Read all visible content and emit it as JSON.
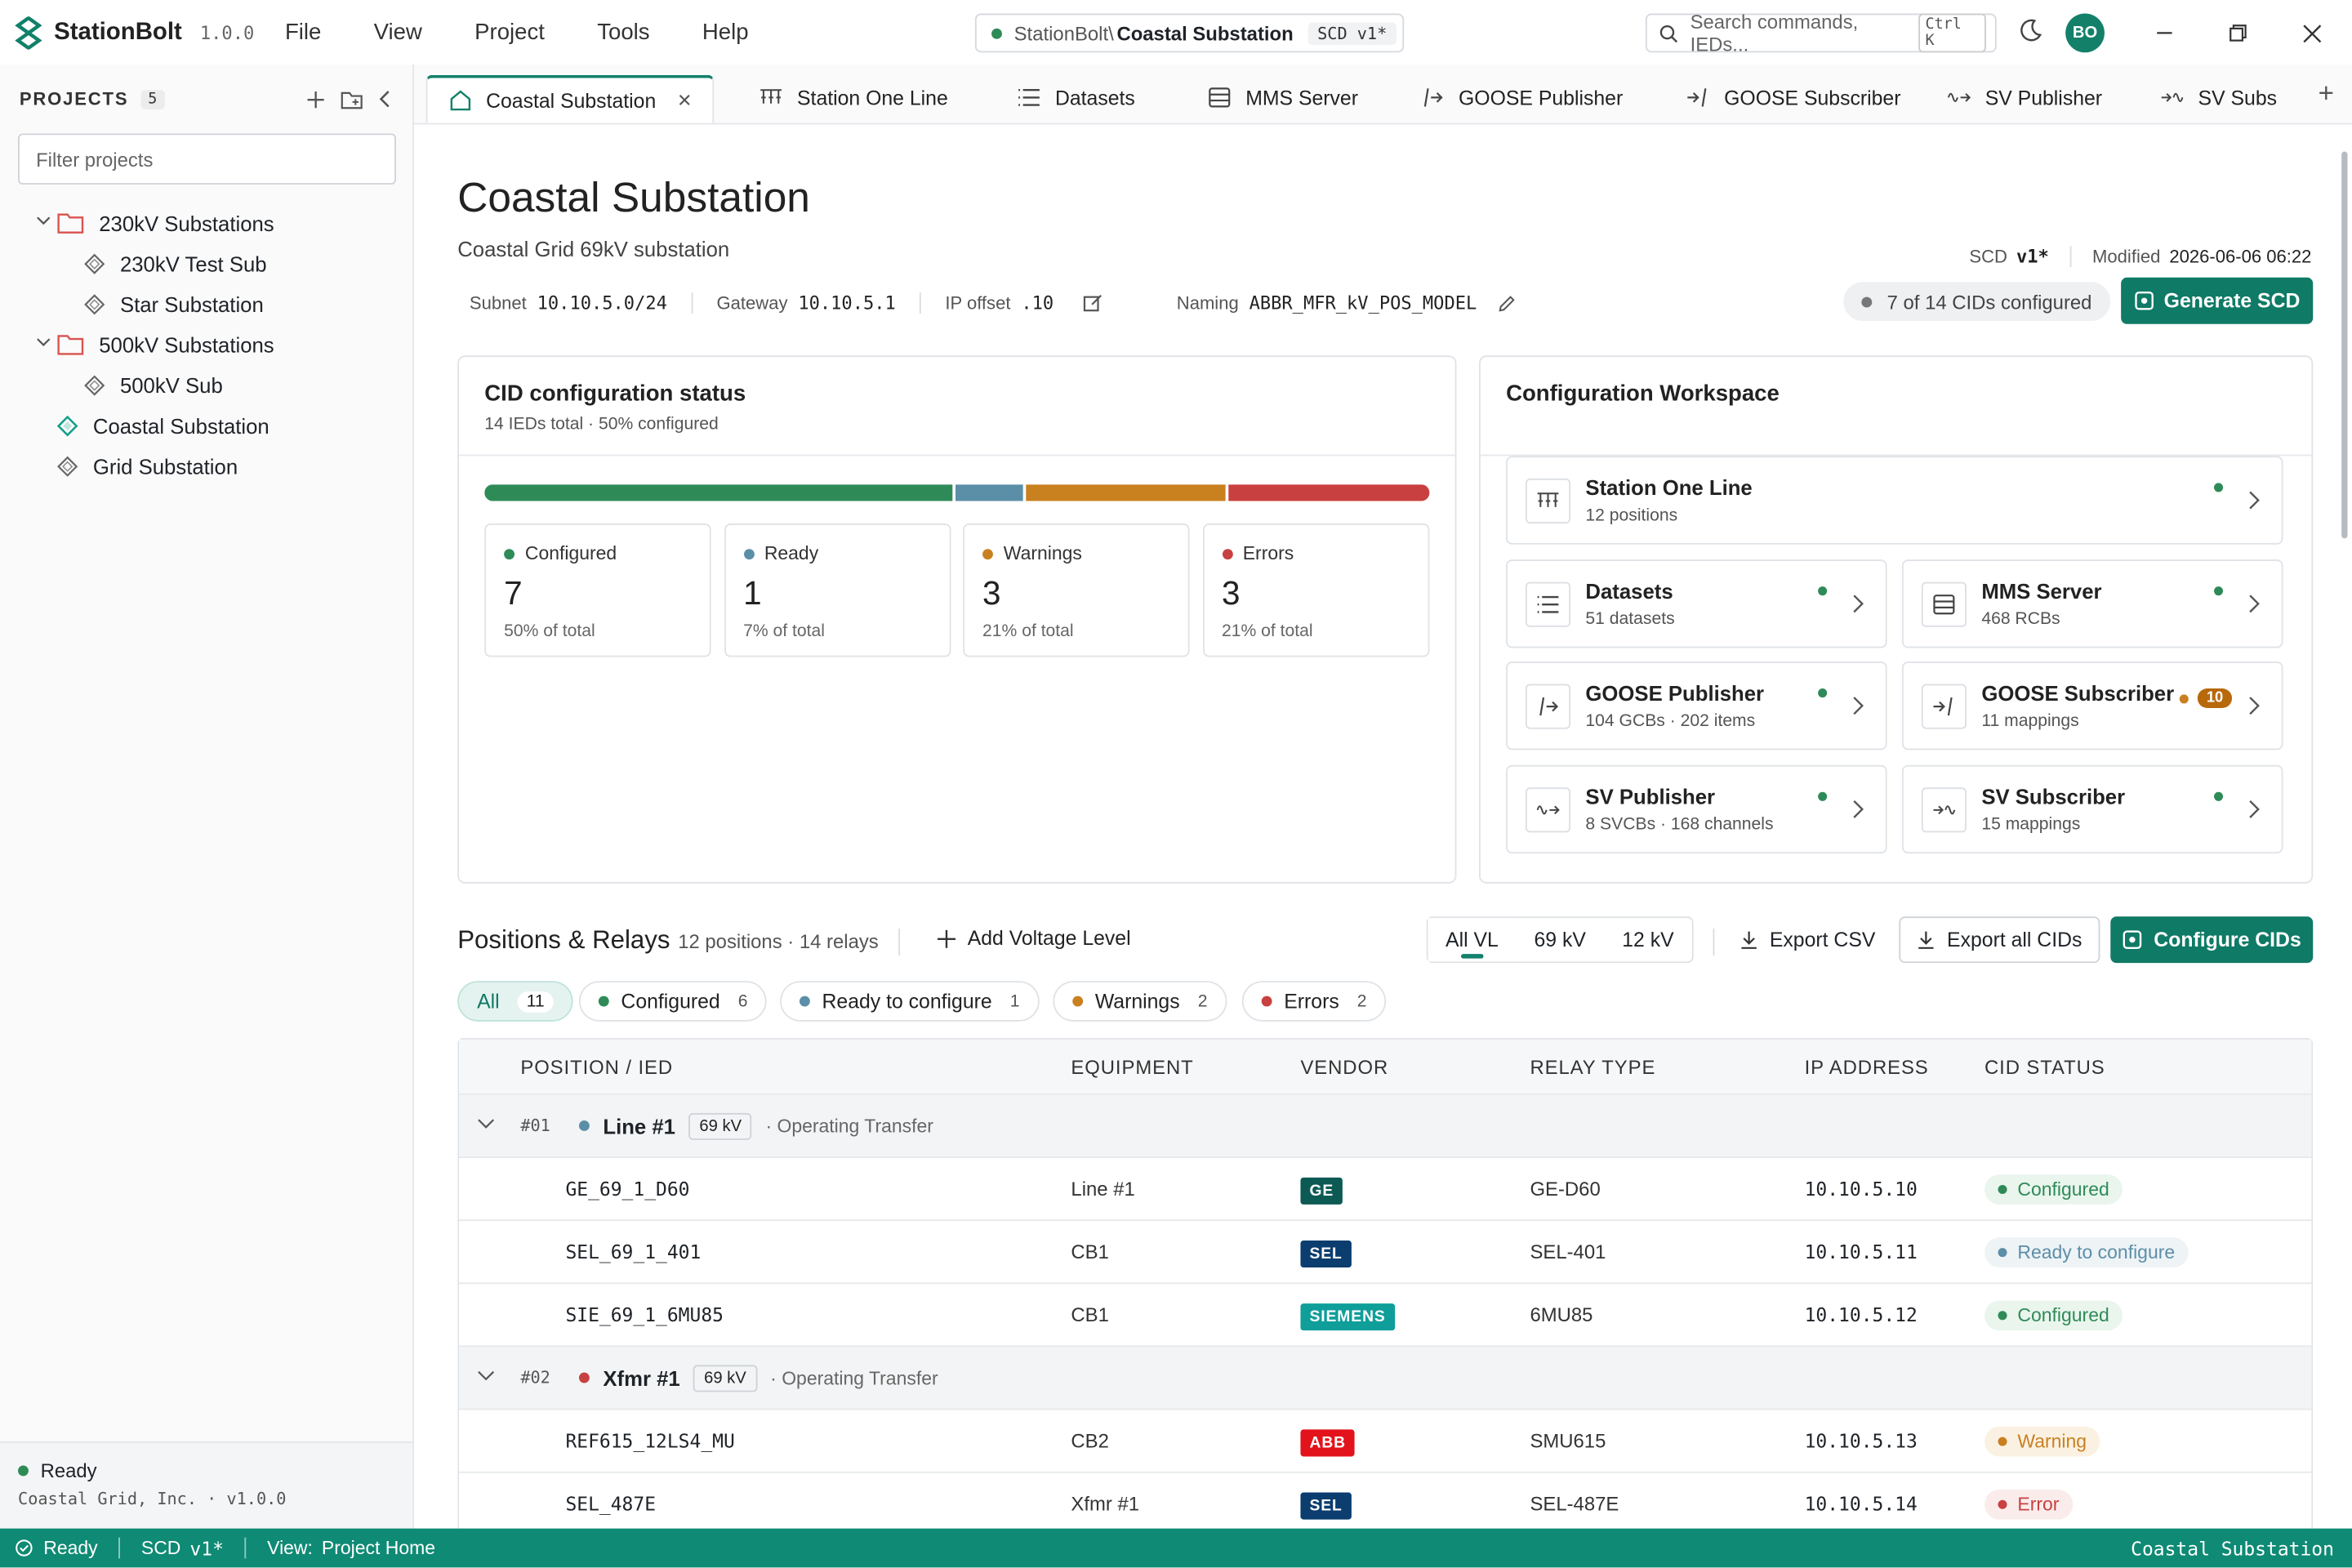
{
  "app": {
    "name": "StationBolt",
    "version": "1.0.0",
    "brand_color": "#13806a"
  },
  "menu": [
    "File",
    "View",
    "Project",
    "Tools",
    "Help"
  ],
  "breadcrumb": {
    "path": "StationBolt\\",
    "current": "Coastal Substation",
    "badge": "SCD v1*"
  },
  "search": {
    "placeholder": "Search commands, IEDs...",
    "shortcut": "Ctrl K"
  },
  "user": {
    "initials": "BO"
  },
  "sidebar": {
    "title": "PROJECTS",
    "count": "5",
    "filter_placeholder": "Filter projects",
    "tree": [
      {
        "label": "230kV Substations",
        "type": "folder",
        "level": 0
      },
      {
        "label": "230kV Test Sub",
        "type": "sub",
        "level": 1
      },
      {
        "label": "Star Substation",
        "type": "sub",
        "level": 1
      },
      {
        "label": "500kV Substations",
        "type": "folder",
        "level": 0
      },
      {
        "label": "500kV Sub",
        "type": "sub",
        "level": 1
      },
      {
        "label": "Coastal Substation",
        "type": "active",
        "level": 0
      },
      {
        "label": "Grid Substation",
        "type": "sub",
        "level": 0
      }
    ],
    "footer_status": "Ready",
    "footer_company": "Coastal Grid, Inc. · v1.0.0"
  },
  "tabs": [
    {
      "label": "Coastal Substation",
      "icon": "home-icon"
    },
    {
      "label": "Station One Line",
      "icon": "one-line-icon"
    },
    {
      "label": "Datasets",
      "icon": "list-icon"
    },
    {
      "label": "MMS Server",
      "icon": "server-icon"
    },
    {
      "label": "GOOSE Publisher",
      "icon": "goose-publisher-icon"
    },
    {
      "label": "GOOSE Subscriber",
      "icon": "goose-subscriber-icon"
    },
    {
      "label": "SV Publisher",
      "icon": "sv-publisher-icon"
    },
    {
      "label": "SV Subs",
      "icon": "sv-subscriber-icon"
    }
  ],
  "page": {
    "title": "Coastal Substation",
    "subtitle": "Coastal Grid 69kV substation",
    "scd_label": "SCD",
    "scd_value": "v1*",
    "modified_label": "Modified",
    "modified_value": "2026-06-06 06:22",
    "subnet_label": "Subnet",
    "subnet": "10.10.5.0/24",
    "gateway_label": "Gateway",
    "gateway": "10.10.5.1",
    "ipoffset_label": "IP offset",
    "ipoffset": ".10",
    "naming_label": "Naming",
    "naming": "ABBR_MFR_kV_POS_MODEL",
    "cids_configured": "7 of 14 CIDs configured",
    "generate_label": "Generate SCD"
  },
  "cid_status": {
    "title": "CID configuration status",
    "subtitle": "14 IEDs total · 50% configured",
    "segments": [
      {
        "name": "Configured",
        "value": 7,
        "color": "#2e8b57",
        "pct_label": "50% of total"
      },
      {
        "name": "Ready",
        "value": 1,
        "color": "#5b8fa8",
        "pct_label": "7% of total"
      },
      {
        "name": "Warnings",
        "value": 3,
        "color": "#c9801f",
        "pct_label": "21% of total"
      },
      {
        "name": "Errors",
        "value": 3,
        "color": "#c94040",
        "pct_label": "21% of total"
      }
    ]
  },
  "workspace": {
    "title": "Configuration Workspace",
    "tiles": [
      {
        "name": "Station One Line",
        "desc": "12 positions",
        "icon": "one-line-icon",
        "status_color": "#2e8b57",
        "badge": ""
      },
      {
        "name": "Datasets",
        "desc": "51 datasets",
        "icon": "list-icon",
        "status_color": "#2e8b57",
        "badge": ""
      },
      {
        "name": "MMS Server",
        "desc": "468 RCBs",
        "icon": "server-icon",
        "status_color": "#2e8b57",
        "badge": ""
      },
      {
        "name": "GOOSE Publisher",
        "desc": "104 GCBs · 202 items",
        "icon": "goose-publisher-icon",
        "status_color": "#2e8b57",
        "badge": ""
      },
      {
        "name": "GOOSE Subscriber",
        "desc": "11 mappings",
        "icon": "goose-subscriber-icon",
        "status_color": "#c9801f",
        "badge": "10"
      },
      {
        "name": "SV Publisher",
        "desc": "8 SVCBs · 168 channels",
        "icon": "sv-publisher-icon",
        "status_color": "#2e8b57",
        "badge": ""
      },
      {
        "name": "SV Subscriber",
        "desc": "15 mappings",
        "icon": "sv-subscriber-icon",
        "status_color": "#2e8b57",
        "badge": ""
      }
    ]
  },
  "positions": {
    "title": "Positions & Relays",
    "count": "12 positions · 14 relays",
    "add_voltage": "Add Voltage Level",
    "vl_filters": [
      "All VL",
      "69 kV",
      "12 kV"
    ],
    "export_csv": "Export CSV",
    "export_cids": "Export all CIDs",
    "configure_cids": "Configure CIDs",
    "chips": [
      {
        "label": "All",
        "count": "11",
        "color": ""
      },
      {
        "label": "Configured",
        "count": "6",
        "color": "#2e8b57"
      },
      {
        "label": "Ready to configure",
        "count": "1",
        "color": "#5b8fa8"
      },
      {
        "label": "Warnings",
        "count": "2",
        "color": "#c9801f"
      },
      {
        "label": "Errors",
        "count": "2",
        "color": "#c94040"
      }
    ],
    "columns": [
      "POSITION / IED",
      "EQUIPMENT",
      "VENDOR",
      "RELAY TYPE",
      "IP ADDRESS",
      "CID STATUS"
    ],
    "groups": [
      {
        "num": "#01",
        "name": "Line #1",
        "vl": "69 kV",
        "mode": "· Operating Transfer",
        "dot": "#5b8fa8",
        "rows": [
          {
            "ied": "GE_69_1_D60",
            "equip": "Line #1",
            "vendor": "GE",
            "vendor_color": "#0d5a55",
            "relay": "GE-D60",
            "ip": "10.10.5.10",
            "status": "Configured",
            "status_color": "#2e8b57",
            "status_bg": "#eaf5ee"
          },
          {
            "ied": "SEL_69_1_401",
            "equip": "CB1",
            "vendor": "SEL",
            "vendor_color": "#0b3d6e",
            "relay": "SEL-401",
            "ip": "10.10.5.11",
            "status": "Ready to configure",
            "status_color": "#5b8fa8",
            "status_bg": "#eef3f6"
          },
          {
            "ied": "SIE_69_1_6MU85",
            "equip": "CB1",
            "vendor": "SIEMENS",
            "vendor_color": "#0f9e9a",
            "relay": "6MU85",
            "ip": "10.10.5.12",
            "status": "Configured",
            "status_color": "#2e8b57",
            "status_bg": "#eaf5ee"
          }
        ]
      },
      {
        "num": "#02",
        "name": "Xfmr #1",
        "vl": "69 kV",
        "mode": "· Operating Transfer",
        "dot": "#c94040",
        "rows": [
          {
            "ied": "REF615_12LS4_MU",
            "equip": "CB2",
            "vendor": "ABB",
            "vendor_color": "#e3131b",
            "relay": "SMU615",
            "ip": "10.10.5.13",
            "status": "Warning",
            "status_color": "#c9801f",
            "status_bg": "#fbf1e3"
          },
          {
            "ied": "SEL_487E",
            "equip": "Xfmr #1",
            "vendor": "SEL",
            "vendor_color": "#0b3d6e",
            "relay": "SEL-487E",
            "ip": "10.10.5.14",
            "status": "Error",
            "status_color": "#c94040",
            "status_bg": "#fbecec"
          }
        ]
      }
    ]
  },
  "statusbar": {
    "status": "Ready",
    "scd_label": "SCD",
    "scd_value": "v1*",
    "view_label": "View:",
    "view_value": "Project Home",
    "right": "Coastal Substation"
  }
}
